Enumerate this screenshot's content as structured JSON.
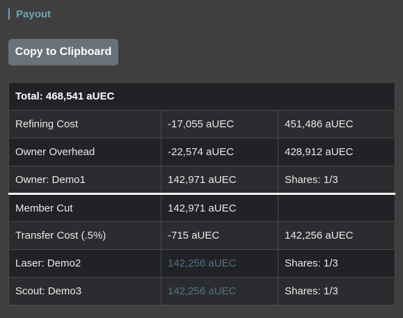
{
  "section": {
    "title": "Payout"
  },
  "actions": {
    "copy_label": "Copy to Clipboard"
  },
  "table": {
    "total": "Total: 468,541 aUEC",
    "rows": [
      {
        "label": "Refining Cost",
        "amount": "-17,055 aUEC",
        "remaining": "451,486 aUEC"
      },
      {
        "label": "Owner Overhead",
        "amount": "-22,574 aUEC",
        "remaining": "428,912 aUEC"
      },
      {
        "label": "Owner: Demo1",
        "amount": "142,971 aUEC",
        "remaining": "Shares: 1/3"
      },
      {
        "label": "Member Cut",
        "amount": "142,971 aUEC",
        "remaining": ""
      },
      {
        "label": "Transfer Cost (.5%)",
        "amount": "-715 aUEC",
        "remaining": "142,256 aUEC"
      },
      {
        "label": "Laser: Demo2",
        "amount": "142,256 aUEC",
        "remaining": "Shares: 1/3"
      },
      {
        "label": "Scout: Demo3",
        "amount": "142,256 aUEC",
        "remaining": "Shares: 1/3"
      }
    ]
  },
  "colors": {
    "accent": "#6aa6b9",
    "muted_value": "#4f7484",
    "button_bg": "#6a7279",
    "page_bg": "#3f3f3f"
  }
}
